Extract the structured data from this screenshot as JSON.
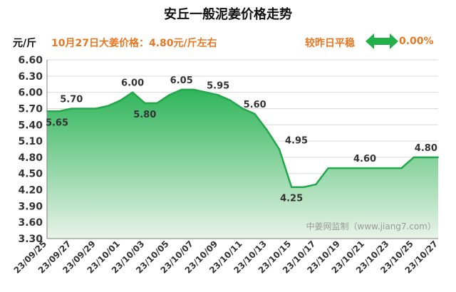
{
  "header": {
    "title": "安丘一般泥姜价格走势",
    "unit": "元/斤",
    "price_text": "10月27日大姜价格：4.80元/斤左右",
    "compare_text": "较昨日平稳",
    "change_pct": "0.00%",
    "accent_color": "#e87722",
    "arrow_icon": "left-right-arrow",
    "arrow_color": "#22b04b"
  },
  "watermark": "中姜网监制（www.jiang7.com）",
  "chart_data": {
    "type": "area",
    "title": "安丘一般泥姜价格走势",
    "ylabel": "元/斤",
    "ylim": [
      3.3,
      6.6
    ],
    "yticks": [
      3.3,
      3.6,
      3.9,
      4.2,
      4.5,
      4.8,
      5.1,
      5.4,
      5.7,
      6.0,
      6.3,
      6.6
    ],
    "ytick_labels": [
      "3.30",
      "3.60",
      "3.90",
      "4.20",
      "4.50",
      "4.80",
      "5.10",
      "5.40",
      "5.70",
      "6.00",
      "6.30",
      "6.60"
    ],
    "xtick_labels": [
      "23/09/25",
      "23/09/27",
      "23/09/29",
      "23/10/01",
      "23/10/03",
      "23/10/05",
      "23/10/07",
      "23/10/09",
      "23/10/11",
      "23/10/13",
      "23/10/15",
      "23/10/17",
      "23/10/19",
      "23/10/21",
      "23/10/23",
      "23/10/25",
      "23/10/27"
    ],
    "x": [
      "23/09/25",
      "23/09/26",
      "23/09/27",
      "23/09/28",
      "23/09/29",
      "23/09/30",
      "23/10/01",
      "23/10/02",
      "23/10/03",
      "23/10/04",
      "23/10/05",
      "23/10/06",
      "23/10/07",
      "23/10/08",
      "23/10/09",
      "23/10/10",
      "23/10/11",
      "23/10/12",
      "23/10/13",
      "23/10/14",
      "23/10/15",
      "23/10/16",
      "23/10/17",
      "23/10/18",
      "23/10/19",
      "23/10/20",
      "23/10/21",
      "23/10/22",
      "23/10/23",
      "23/10/24",
      "23/10/25",
      "23/10/26",
      "23/10/27"
    ],
    "values": [
      5.65,
      5.65,
      5.7,
      5.7,
      5.7,
      5.75,
      5.85,
      6.0,
      5.8,
      5.8,
      5.95,
      6.05,
      6.05,
      6.0,
      5.95,
      5.85,
      5.7,
      5.6,
      5.3,
      4.95,
      4.25,
      4.25,
      4.3,
      4.6,
      4.6,
      4.6,
      4.6,
      4.6,
      4.6,
      4.6,
      4.8,
      4.8,
      4.8
    ],
    "data_labels": [
      {
        "x": "23/09/25",
        "text": "5.65",
        "pos": "below"
      },
      {
        "x": "23/09/27",
        "text": "5.70",
        "pos": "above"
      },
      {
        "x": "23/10/02",
        "text": "6.00",
        "pos": "above"
      },
      {
        "x": "23/10/03",
        "text": "5.80",
        "pos": "below"
      },
      {
        "x": "23/10/06",
        "text": "6.05",
        "pos": "above"
      },
      {
        "x": "23/10/09",
        "text": "5.95",
        "pos": "above"
      },
      {
        "x": "23/10/12",
        "text": "5.60",
        "pos": "above"
      },
      {
        "x": "23/10/14",
        "text": "4.95",
        "pos": "right"
      },
      {
        "x": "23/10/15",
        "text": "4.25",
        "pos": "below"
      },
      {
        "x": "23/10/21",
        "text": "4.60",
        "pos": "above"
      },
      {
        "x": "23/10/26",
        "text": "4.80",
        "pos": "above"
      }
    ],
    "grid": true,
    "legend": "none",
    "line_color": "#22a84a",
    "fill_top_color": "#2fb55a",
    "fill_bottom_color": "#e8f3e8"
  }
}
